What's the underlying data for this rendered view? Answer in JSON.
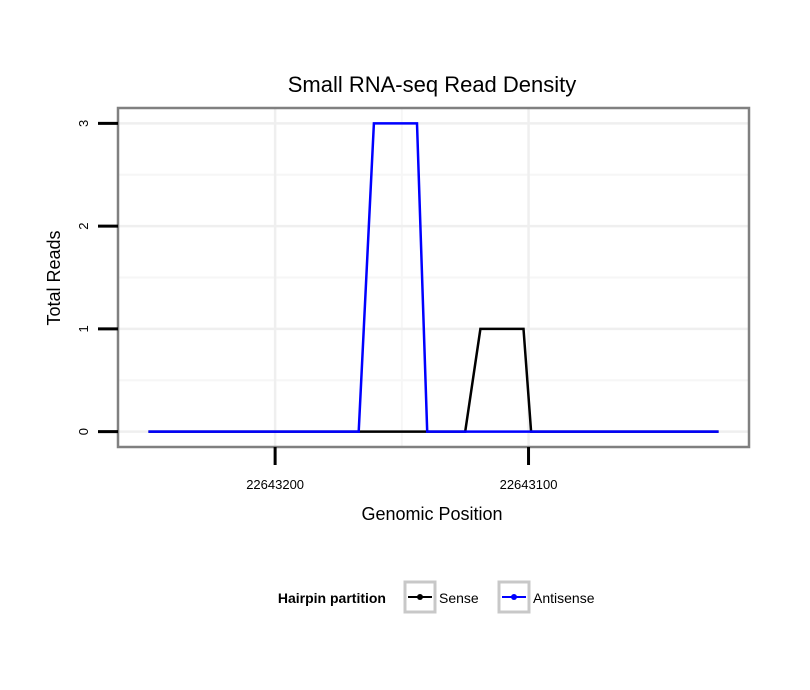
{
  "chart_data": {
    "type": "line",
    "title": "Small RNA-seq Read Density",
    "xlabel": "Genomic Position",
    "ylabel": "Total Reads",
    "x_reversed": true,
    "xlim": [
      22643262,
      22643013
    ],
    "ylim": [
      -0.15,
      3.15
    ],
    "x_ticks": [
      22643200,
      22643100
    ],
    "x_tick_labels": [
      "22643200",
      "22643100"
    ],
    "y_ticks": [
      0,
      1,
      2,
      3
    ],
    "y_tick_labels": [
      "0",
      "1",
      "2",
      "3"
    ],
    "grid": true,
    "legend": {
      "title": "Hairpin partition",
      "placement": "bottom",
      "entries": [
        "Sense",
        "Antisense"
      ]
    },
    "series": [
      {
        "name": "Sense",
        "color": "#000000",
        "x": [
          22643250,
          22643125,
          22643119,
          22643102,
          22643099,
          22643025
        ],
        "y": [
          0,
          0,
          1,
          1,
          0,
          0
        ]
      },
      {
        "name": "Antisense",
        "color": "#0000ff",
        "x": [
          22643250,
          22643167,
          22643161,
          22643144,
          22643140,
          22643025
        ],
        "y": [
          0,
          0,
          3,
          3,
          0,
          0
        ]
      }
    ]
  }
}
